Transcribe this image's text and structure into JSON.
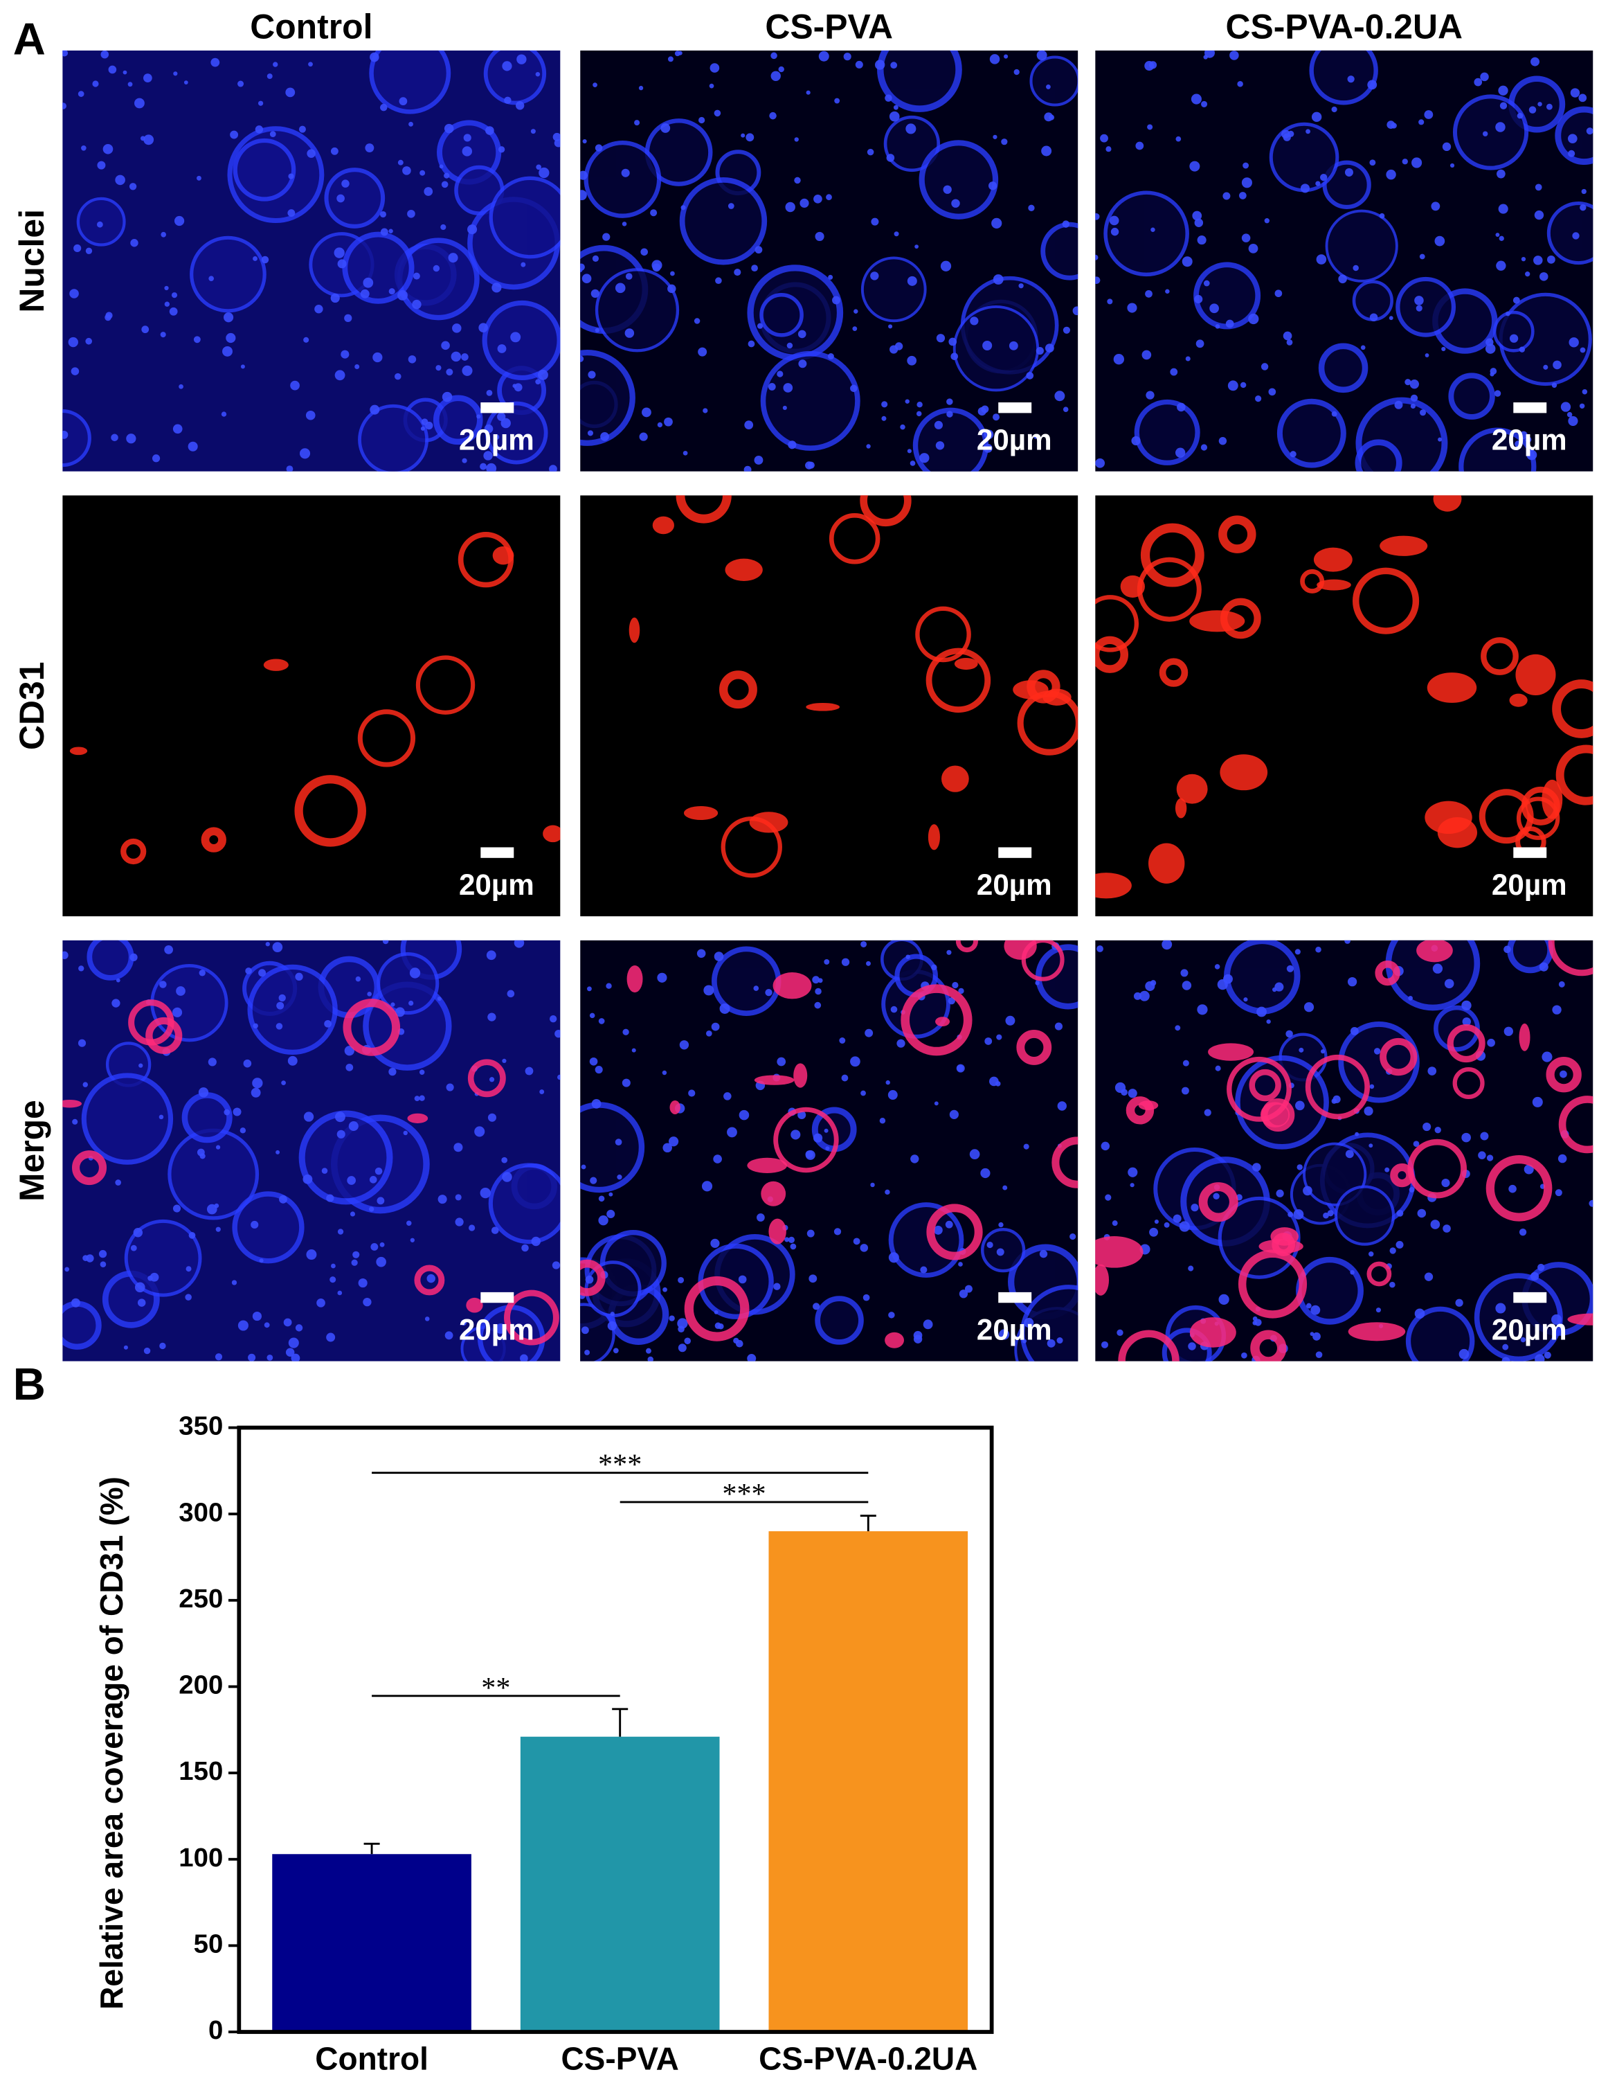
{
  "panel_labels": [
    "A",
    "B"
  ],
  "columns": [
    "Control",
    "CS-PVA",
    "CS-PVA-0.2UA"
  ],
  "rows": [
    "Nuclei",
    "CD31",
    "Merge"
  ],
  "scale_bar_label": "20µm",
  "chart_data": {
    "type": "bar",
    "y_label": "Relative area coverage of CD31 (%)",
    "categories": [
      "Control",
      "CS-PVA",
      "CS-PVA-0.2UA"
    ],
    "values": [
      103,
      171,
      290
    ],
    "errors": [
      6,
      16,
      9
    ],
    "colors": [
      "#00008b",
      "#2196a8",
      "#f7931e"
    ],
    "ylim": [
      0,
      350
    ],
    "yticks": [
      0,
      50,
      100,
      150,
      200,
      250,
      300,
      350
    ],
    "annotations": [
      "***",
      "***",
      "**"
    ]
  }
}
